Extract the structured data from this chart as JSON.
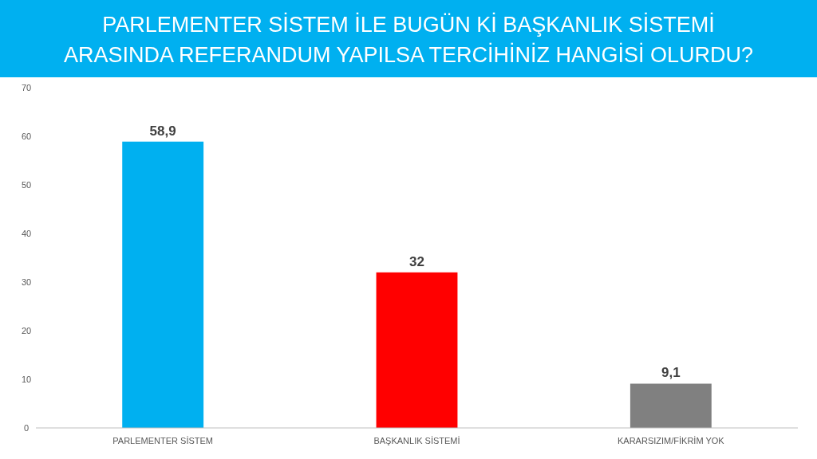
{
  "chart_data": {
    "type": "bar",
    "title": "PARLEMENTER SİSTEM İLE BUGÜN Kİ BAŞKANLIK SİSTEMİ ARASINDA REFERANDUM YAPILSA TERCİHİNİZ HANGİSİ OLURDU?",
    "categories": [
      "PARLEMENTER SİSTEM",
      "BAŞKANLIK SİSTEMİ",
      "KARARSIZIM/FİKRİM YOK"
    ],
    "values": [
      58.9,
      32,
      9.1
    ],
    "colors": [
      "#00b0f0",
      "#ff0000",
      "#808080"
    ],
    "value_labels": [
      "58,9",
      "32",
      "9,1"
    ],
    "ylim": [
      0,
      70
    ],
    "yticks": [
      0,
      10,
      20,
      30,
      40,
      50,
      60,
      70
    ],
    "grid": false
  }
}
